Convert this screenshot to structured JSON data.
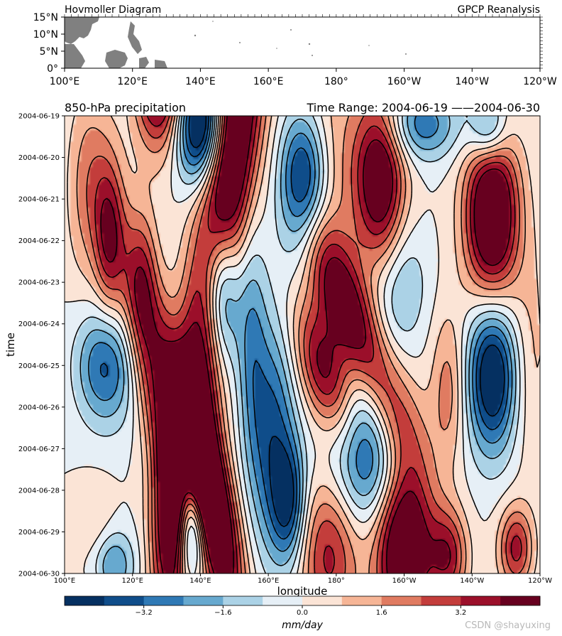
{
  "top_panel": {
    "title_left": "Hovmoller Diagram",
    "title_right": "GPCP Reanalysis",
    "y_ticks": [
      "0°",
      "5°N",
      "10°N",
      "15°N"
    ],
    "x_ticks": [
      "100°E",
      "120°E",
      "140°E",
      "160°E",
      "180°",
      "160°W",
      "140°W",
      "120°W"
    ],
    "land_color": "#808080"
  },
  "main_panel": {
    "title_left": "850-hPa precipitation",
    "title_right": "Time Range: 2004-06-19 ——2004-06-30",
    "xlabel": "longitude",
    "ylabel": "time",
    "x_ticks": [
      "100°E",
      "120°E",
      "140°E",
      "160°E",
      "180°",
      "160°W",
      "140°W",
      "120°W"
    ],
    "y_ticks": [
      "2004-06-19",
      "2004-06-20",
      "2004-06-21",
      "2004-06-22",
      "2004-06-23",
      "2004-06-24",
      "2004-06-25",
      "2004-06-26",
      "2004-06-27",
      "2004-06-28",
      "2004-06-29",
      "2004-06-30"
    ]
  },
  "colorbar": {
    "label": "mm/day",
    "tick_labels": [
      "−3.2",
      "−1.6",
      "0.0",
      "1.6",
      "3.2"
    ],
    "colors": [
      "#053061",
      "#0f4d8a",
      "#2f79b5",
      "#67a9cf",
      "#abd2e6",
      "#e6eff6",
      "#fbe4d6",
      "#f6b596",
      "#e07b61",
      "#c33d3b",
      "#9b0f2a",
      "#67001f"
    ]
  },
  "watermark": "CSDN @shayuxing",
  "chart_data": {
    "type": "heatmap",
    "x_range": [
      "100°E",
      "120°W"
    ],
    "y_range": [
      "2004-06-19",
      "2004-06-30"
    ],
    "levels": [
      -4.0,
      -3.2,
      -2.4,
      -1.6,
      -0.8,
      0.0,
      0.8,
      1.6,
      2.4,
      3.2,
      4.0
    ],
    "units": "mm/day",
    "grid": false
  }
}
